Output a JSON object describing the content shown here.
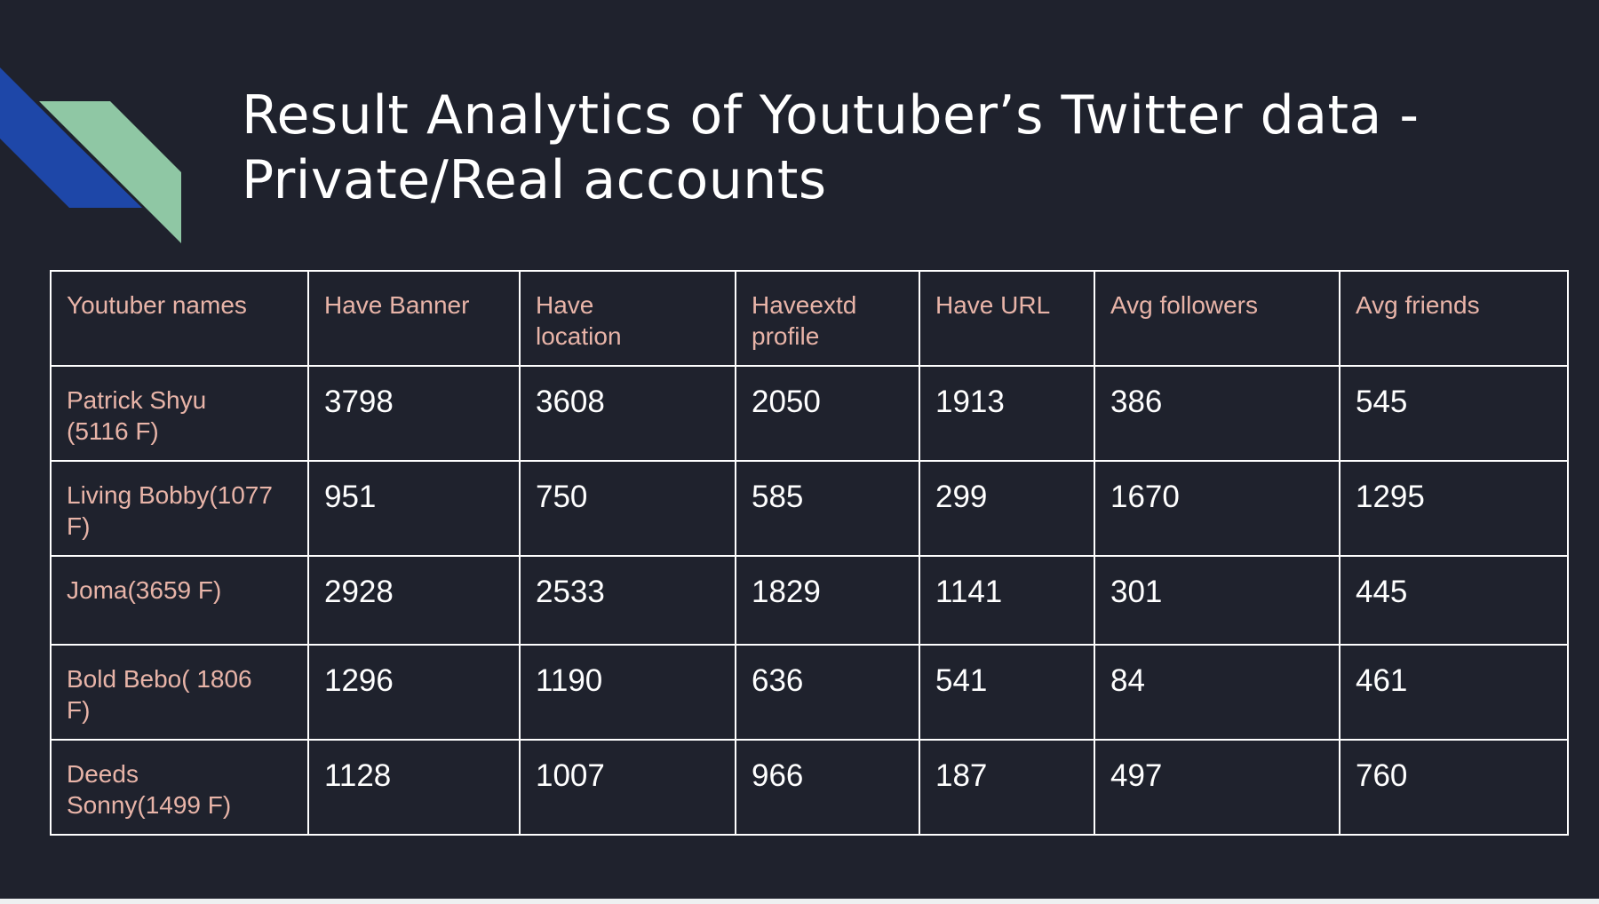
{
  "slide": {
    "title": "Result Analytics of Youtuber’s Twitter data - Private/Real accounts",
    "colors": {
      "background": "#1f222d",
      "accent_blue": "#1e47a8",
      "accent_green": "#8fc7a4",
      "header_text": "#e8b4a8",
      "value_text": "#ffffff"
    }
  },
  "table": {
    "columns": [
      "Youtuber names",
      "Have Banner",
      "Have location",
      "Haveextd profile",
      "Have URL",
      "Avg followers",
      "Avg friends"
    ],
    "rows": [
      {
        "name": "Patrick Shyu (5116 F)",
        "values": [
          "3798",
          "3608",
          "2050",
          "1913",
          "386",
          "545"
        ]
      },
      {
        "name": "Living Bobby(1077 F)",
        "values": [
          "951",
          "750",
          "585",
          "299",
          "1670",
          "1295"
        ]
      },
      {
        "name": "Joma(3659 F)",
        "values": [
          "2928",
          "2533",
          "1829",
          "1141",
          "301",
          "445"
        ]
      },
      {
        "name": "Bold Bebo( 1806 F)",
        "values": [
          "1296",
          "1190",
          "636",
          "541",
          "84",
          "461"
        ]
      },
      {
        "name": "Deeds Sonny(1499 F)",
        "values": [
          "1128",
          "1007",
          "966",
          "187",
          "497",
          "760"
        ]
      }
    ]
  }
}
